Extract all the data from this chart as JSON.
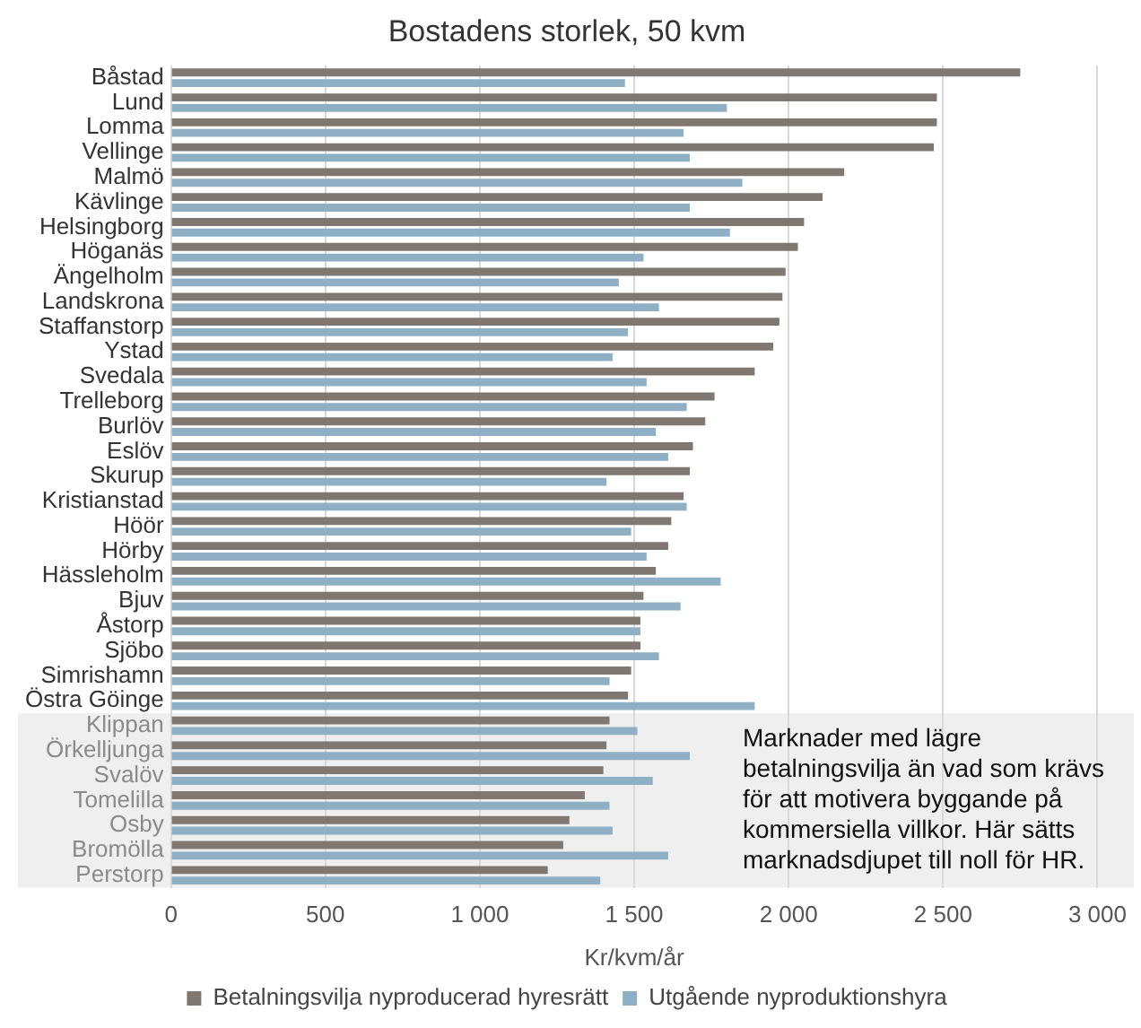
{
  "chart_data": {
    "type": "bar",
    "orientation": "horizontal",
    "title": "Bostadens storlek, 50 kvm",
    "xlabel": "Kr/kvm/år",
    "categories": [
      "Båstad",
      "Lund",
      "Lomma",
      "Vellinge",
      "Malmö",
      "Kävlinge",
      "Helsingborg",
      "Höganäs",
      "Ängelholm",
      "Landskrona",
      "Staffanstorp",
      "Ystad",
      "Svedala",
      "Trelleborg",
      "Burlöv",
      "Eslöv",
      "Skurup",
      "Kristianstad",
      "Höör",
      "Hörby",
      "Hässleholm",
      "Bjuv",
      "Åstorp",
      "Sjöbo",
      "Simrishamn",
      "Östra Göinge",
      "Klippan",
      "Örkelljunga",
      "Svalöv",
      "Tomelilla",
      "Osby",
      "Bromölla",
      "Perstorp"
    ],
    "series": [
      {
        "name": "Betalningsvilja nyproducerad hyresrätt",
        "color": "#7f7770",
        "values": [
          2750,
          2480,
          2480,
          2470,
          2180,
          2110,
          2050,
          2030,
          1990,
          1980,
          1970,
          1950,
          1890,
          1760,
          1730,
          1690,
          1680,
          1660,
          1620,
          1610,
          1570,
          1530,
          1520,
          1520,
          1490,
          1480,
          1420,
          1410,
          1400,
          1340,
          1290,
          1270,
          1220
        ]
      },
      {
        "name": "Utgående nyproduktionshyra",
        "color": "#8fb0c4",
        "values": [
          1470,
          1800,
          1660,
          1680,
          1850,
          1680,
          1810,
          1530,
          1450,
          1580,
          1480,
          1430,
          1540,
          1670,
          1570,
          1610,
          1410,
          1670,
          1490,
          1540,
          1780,
          1650,
          1520,
          1580,
          1420,
          1890,
          1510,
          1680,
          1560,
          1420,
          1430,
          1610,
          1390
        ]
      }
    ],
    "xlim": [
      0,
      3000
    ],
    "xticks": [
      0,
      500,
      {
        "value": 1000,
        "label": "1 000"
      },
      {
        "value": 1500,
        "label": "1 500"
      },
      {
        "value": 2000,
        "label": "2 000"
      },
      {
        "value": 2500,
        "label": "2 500"
      },
      {
        "value": 3000,
        "label": "3 000"
      }
    ],
    "bands": [
      {
        "axis": "y",
        "from": "Klippan",
        "to": "Perstorp",
        "color": "#efefef",
        "label": "Marknader med lägre betalningsvilja än vad som krävs för att motivera byggande på kommersiella villkor. Här sätts marknadsdjupet till noll för HR."
      }
    ],
    "grid": "x",
    "legend": "bottom"
  }
}
